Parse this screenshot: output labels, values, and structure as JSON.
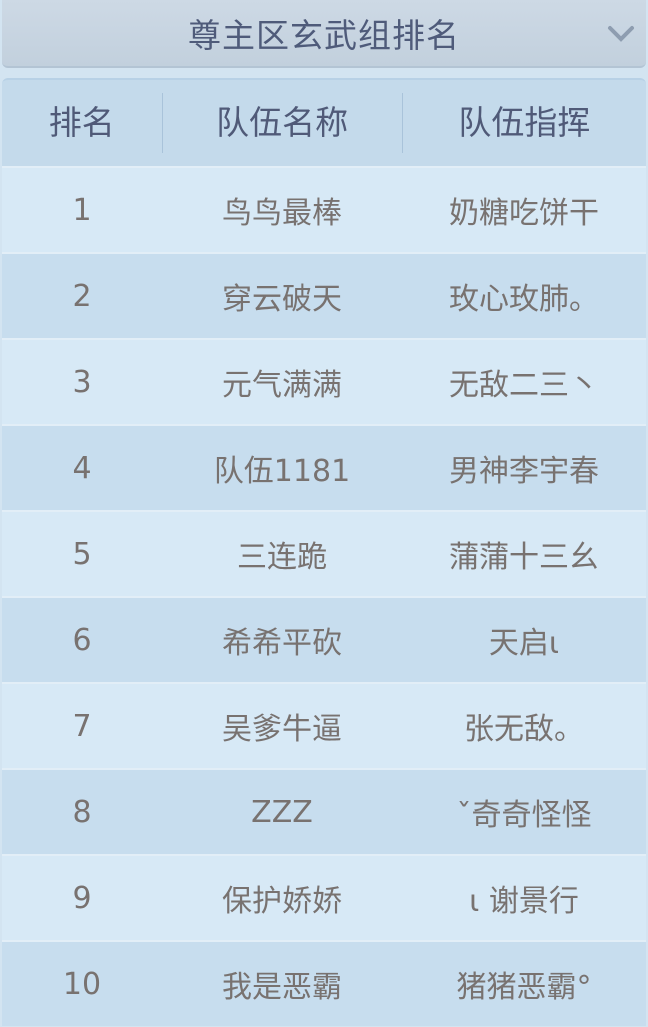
{
  "header": {
    "title": "尊主区玄武组排名",
    "dropdown_icon": "chevron-down-icon"
  },
  "table": {
    "columns": [
      "排名",
      "队伍名称",
      "队伍指挥"
    ],
    "rows": [
      {
        "rank": "1",
        "team": "鸟鸟最棒",
        "commander": "奶糖吃饼干"
      },
      {
        "rank": "2",
        "team": "穿云破天",
        "commander": "玫心玫肺。"
      },
      {
        "rank": "3",
        "team": "元气满满",
        "commander": "无敌二三丶"
      },
      {
        "rank": "4",
        "team": "队伍1181",
        "commander": "男神李宇春"
      },
      {
        "rank": "5",
        "team": "三连跪",
        "commander": "蒲蒲十三幺"
      },
      {
        "rank": "6",
        "team": "希希平砍",
        "commander": "天启ι"
      },
      {
        "rank": "7",
        "team": "吴爹牛逼",
        "commander": "张无敌。"
      },
      {
        "rank": "8",
        "team": "ZZZ",
        "commander": "ˇ奇奇怪怪"
      },
      {
        "rank": "9",
        "team": "保护娇娇",
        "commander": "ι 谢景行"
      },
      {
        "rank": "10",
        "team": "我是恶霸",
        "commander": "猪猪恶霸°"
      }
    ]
  },
  "colors": {
    "title_text": "#4f5b7a",
    "row_text": "#787270",
    "row_light": "#d7e9f6",
    "row_dark": "#c7ddee"
  }
}
